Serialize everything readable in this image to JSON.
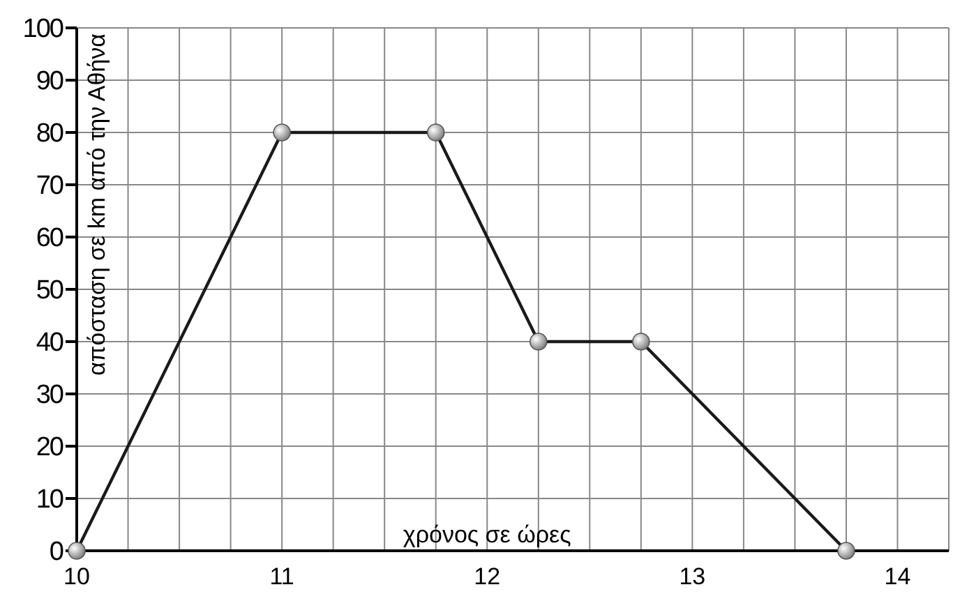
{
  "chart_data": {
    "type": "line",
    "xlabel": "χρόνος σε ώρες",
    "ylabel": "απόσταση σε km από την Αθήνα",
    "x": [
      10,
      11,
      11.75,
      12.25,
      12.75,
      13.75
    ],
    "series": [
      {
        "color": "#1a1a1a",
        "values": [
          0,
          80,
          80,
          40,
          40,
          0
        ]
      }
    ],
    "xlim": [
      10,
      14.25
    ],
    "ylim": [
      0,
      100
    ],
    "xticks": [
      10,
      {
        "value": 10.25,
        "label": null
      },
      {
        "value": 10.5,
        "label": null
      },
      {
        "value": 10.75,
        "label": null
      },
      11,
      {
        "value": 11.25,
        "label": null
      },
      {
        "value": 11.5,
        "label": null
      },
      {
        "value": 11.75,
        "label": null
      },
      12,
      {
        "value": 12.25,
        "label": null
      },
      {
        "value": 12.5,
        "label": null
      },
      {
        "value": 12.75,
        "label": null
      },
      13,
      {
        "value": 13.25,
        "label": null
      },
      {
        "value": 13.5,
        "label": null
      },
      {
        "value": 13.75,
        "label": null
      },
      14,
      {
        "value": 14.25,
        "label": null
      }
    ],
    "yticks": [
      0,
      10,
      20,
      30,
      40,
      50,
      60,
      70,
      80,
      90,
      100
    ],
    "grid": true,
    "marker": "circle",
    "line_style": "solid"
  }
}
